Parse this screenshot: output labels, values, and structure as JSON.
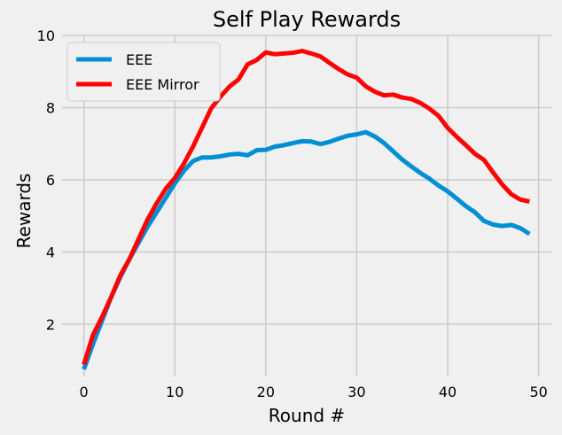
{
  "chart_data": {
    "type": "line",
    "title": "Self Play Rewards",
    "xlabel": "Round #",
    "ylabel": "Rewards",
    "xlim": [
      -2.4,
      51.4
    ],
    "ylim": [
      0.55,
      10
    ],
    "xticks": [
      0,
      10,
      20,
      30,
      40,
      50
    ],
    "yticks": [
      2,
      4,
      6,
      8,
      10
    ],
    "grid": true,
    "legend_position": "top-left",
    "x": [
      0,
      1,
      2,
      3,
      4,
      5,
      6,
      7,
      8,
      9,
      10,
      11,
      12,
      13,
      14,
      15,
      16,
      17,
      18,
      19,
      20,
      21,
      22,
      23,
      24,
      25,
      26,
      27,
      28,
      29,
      30,
      31,
      32,
      33,
      34,
      35,
      36,
      37,
      38,
      39,
      40,
      41,
      42,
      43,
      44,
      45,
      46,
      47,
      48,
      49
    ],
    "series": [
      {
        "name": "EEE",
        "color": "#008fd5",
        "values": [
          0.75,
          1.45,
          2.1,
          2.75,
          3.3,
          3.8,
          4.25,
          4.7,
          5.1,
          5.5,
          5.9,
          6.25,
          6.52,
          6.62,
          6.62,
          6.65,
          6.7,
          6.72,
          6.68,
          6.82,
          6.83,
          6.92,
          6.96,
          7.02,
          7.07,
          7.06,
          6.99,
          7.05,
          7.14,
          7.22,
          7.26,
          7.32,
          7.2,
          7.02,
          6.79,
          6.56,
          6.37,
          6.19,
          6.03,
          5.84,
          5.68,
          5.48,
          5.27,
          5.1,
          4.86,
          4.76,
          4.72,
          4.75,
          4.66,
          4.5
        ]
      },
      {
        "name": "EEE Mirror",
        "color": "#fc0404",
        "values": [
          0.88,
          1.7,
          2.2,
          2.75,
          3.35,
          3.8,
          4.35,
          4.9,
          5.35,
          5.75,
          6.05,
          6.45,
          6.92,
          7.45,
          7.98,
          8.3,
          8.58,
          8.78,
          9.2,
          9.32,
          9.53,
          9.48,
          9.5,
          9.52,
          9.57,
          9.5,
          9.42,
          9.24,
          9.07,
          8.92,
          8.83,
          8.59,
          8.44,
          8.34,
          8.36,
          8.28,
          8.24,
          8.13,
          7.97,
          7.77,
          7.44,
          7.19,
          6.96,
          6.72,
          6.55,
          6.2,
          5.87,
          5.6,
          5.45,
          5.4
        ]
      }
    ]
  }
}
